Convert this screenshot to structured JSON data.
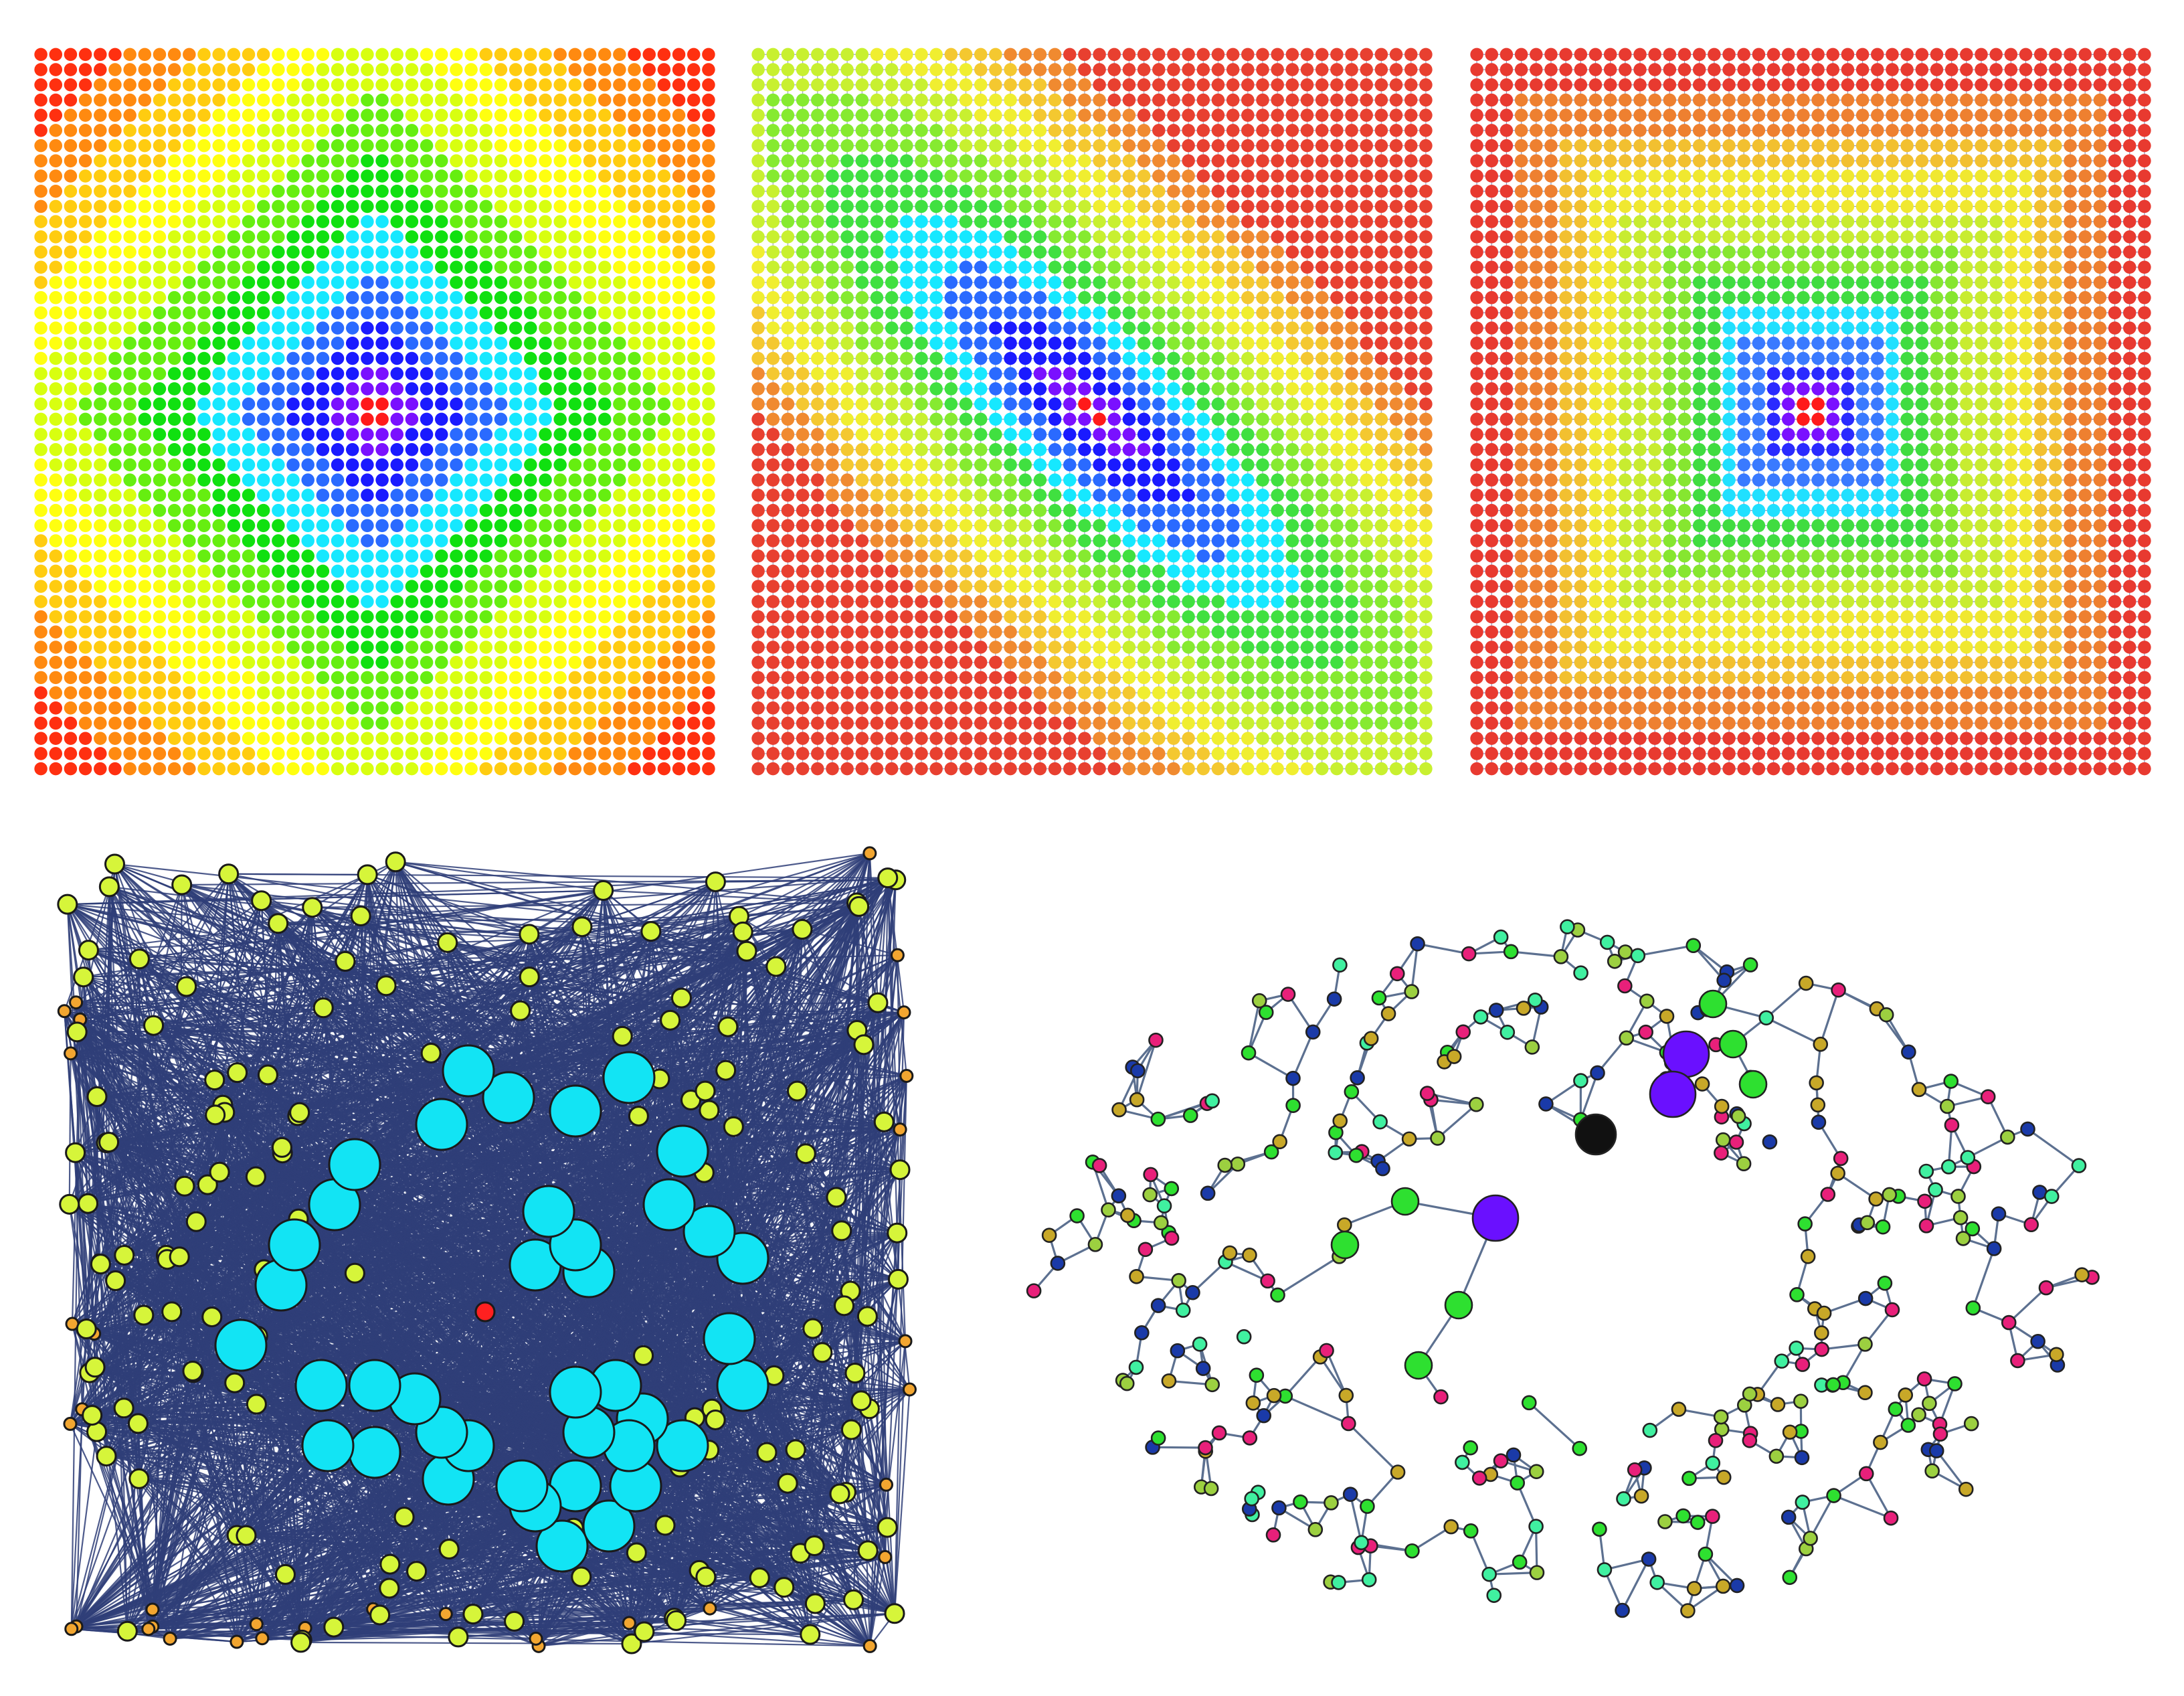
{
  "panels": [
    {
      "id": "grid-diamond",
      "kind": "grid-graph",
      "grid": {
        "cols": 46,
        "rows": 48
      },
      "metric": "diamond",
      "skew": 0,
      "edge_color": "#ffffff",
      "palette": [
        "#ff1a1a",
        "#7a10ff",
        "#1a1aff",
        "#2a6aff",
        "#16e8ff",
        "#10e010",
        "#66ee10",
        "#d8ff10",
        "#ffff10",
        "#ffcc10",
        "#ff8a10",
        "#ff3010"
      ]
    },
    {
      "id": "grid-skewed",
      "kind": "grid-graph",
      "grid": {
        "cols": 46,
        "rows": 48
      },
      "metric": "skewed",
      "skew": 0.55,
      "edge_color": "#9aa6c8",
      "palette": [
        "#ff1a1a",
        "#7a10ff",
        "#1a1aff",
        "#2a6aff",
        "#16e8ff",
        "#40e040",
        "#86ea30",
        "#c8f030",
        "#f0ee30",
        "#f4c830",
        "#f08a30",
        "#e84030"
      ]
    },
    {
      "id": "grid-square",
      "kind": "grid-graph",
      "grid": {
        "cols": 46,
        "rows": 48
      },
      "metric": "square",
      "skew": 0,
      "edge_color": "#8a96c0",
      "palette": [
        "#ff1a1a",
        "#7a10ff",
        "#2a2aff",
        "#3a7aff",
        "#20e0ff",
        "#40dc40",
        "#86e630",
        "#c8ec30",
        "#f0e830",
        "#f2c030",
        "#ee8030",
        "#e83a30"
      ]
    },
    {
      "id": "dense-network",
      "kind": "random-graph",
      "edge_color": "#2f3e78",
      "legend": [
        {
          "color": "#ff2020",
          "role": "source"
        },
        {
          "color": "#12e4f4",
          "role": "near"
        },
        {
          "color": "#d6f53a",
          "role": "mid"
        },
        {
          "color": "#f2a630",
          "role": "far"
        }
      ]
    },
    {
      "id": "ring-network",
      "kind": "random-graph",
      "edge_color": "#5c7090",
      "legend": [
        {
          "color": "#111111",
          "role": "source"
        },
        {
          "color": "#6a10ff",
          "role": "hop-1"
        },
        {
          "color": "#2ee030",
          "role": "hop-2"
        },
        {
          "color": "#40f0a0",
          "role": "hop-3"
        },
        {
          "color": "#e8207a",
          "role": "hop-4"
        },
        {
          "color": "#1a3aa8",
          "role": "hop-5"
        },
        {
          "color": "#9cd040",
          "role": "hop-6"
        },
        {
          "color": "#c8a828",
          "role": "hop-7"
        }
      ]
    }
  ]
}
